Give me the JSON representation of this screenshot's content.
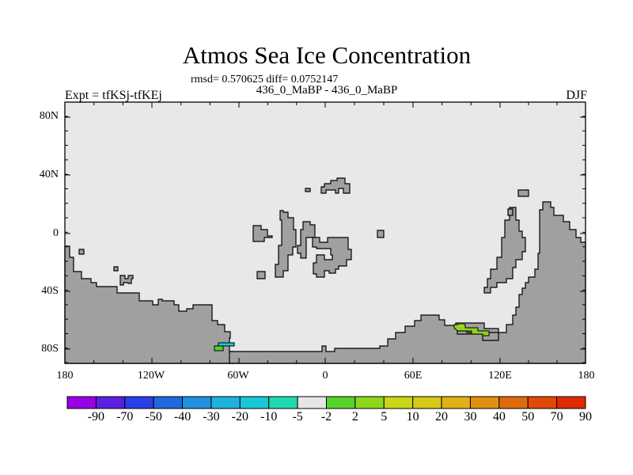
{
  "title": "Atmos Sea Ice Concentration",
  "stats": "rmsd= 0.570625 diff= 0.0752147",
  "subtitle": "436_0_MaBP - 436_0_MaBP",
  "left_label": "Expt = tfKSj-tfKEj",
  "right_label": "DJF",
  "map": {
    "lon_range": [
      -180,
      180
    ],
    "lat_range": [
      -90,
      90
    ],
    "ocean_color": "#e8e8e8",
    "land_color": "#a0a0a0",
    "x_ticks": [
      "180",
      "120W",
      "60W",
      "0",
      "60E",
      "120E",
      "180"
    ],
    "y_ticks": [
      "80N",
      "40N",
      "0",
      "40S",
      "80S"
    ]
  },
  "colorbar": {
    "colors": [
      "#9900e6",
      "#5a1fe0",
      "#2a3fe8",
      "#1f68e0",
      "#2190e0",
      "#1fb2e0",
      "#18c8d8",
      "#20d8b0",
      "#e6e6e6",
      "#56d22a",
      "#8cd61c",
      "#c8d618",
      "#d8c818",
      "#e0b015",
      "#e09010",
      "#e06a0a",
      "#e04a06",
      "#e02a02"
    ],
    "labels": [
      "-90",
      "-70",
      "-50",
      "-40",
      "-30",
      "-20",
      "-10",
      "-5",
      "-2",
      "2",
      "5",
      "10",
      "20",
      "30",
      "40",
      "50",
      "70",
      "90"
    ]
  }
}
